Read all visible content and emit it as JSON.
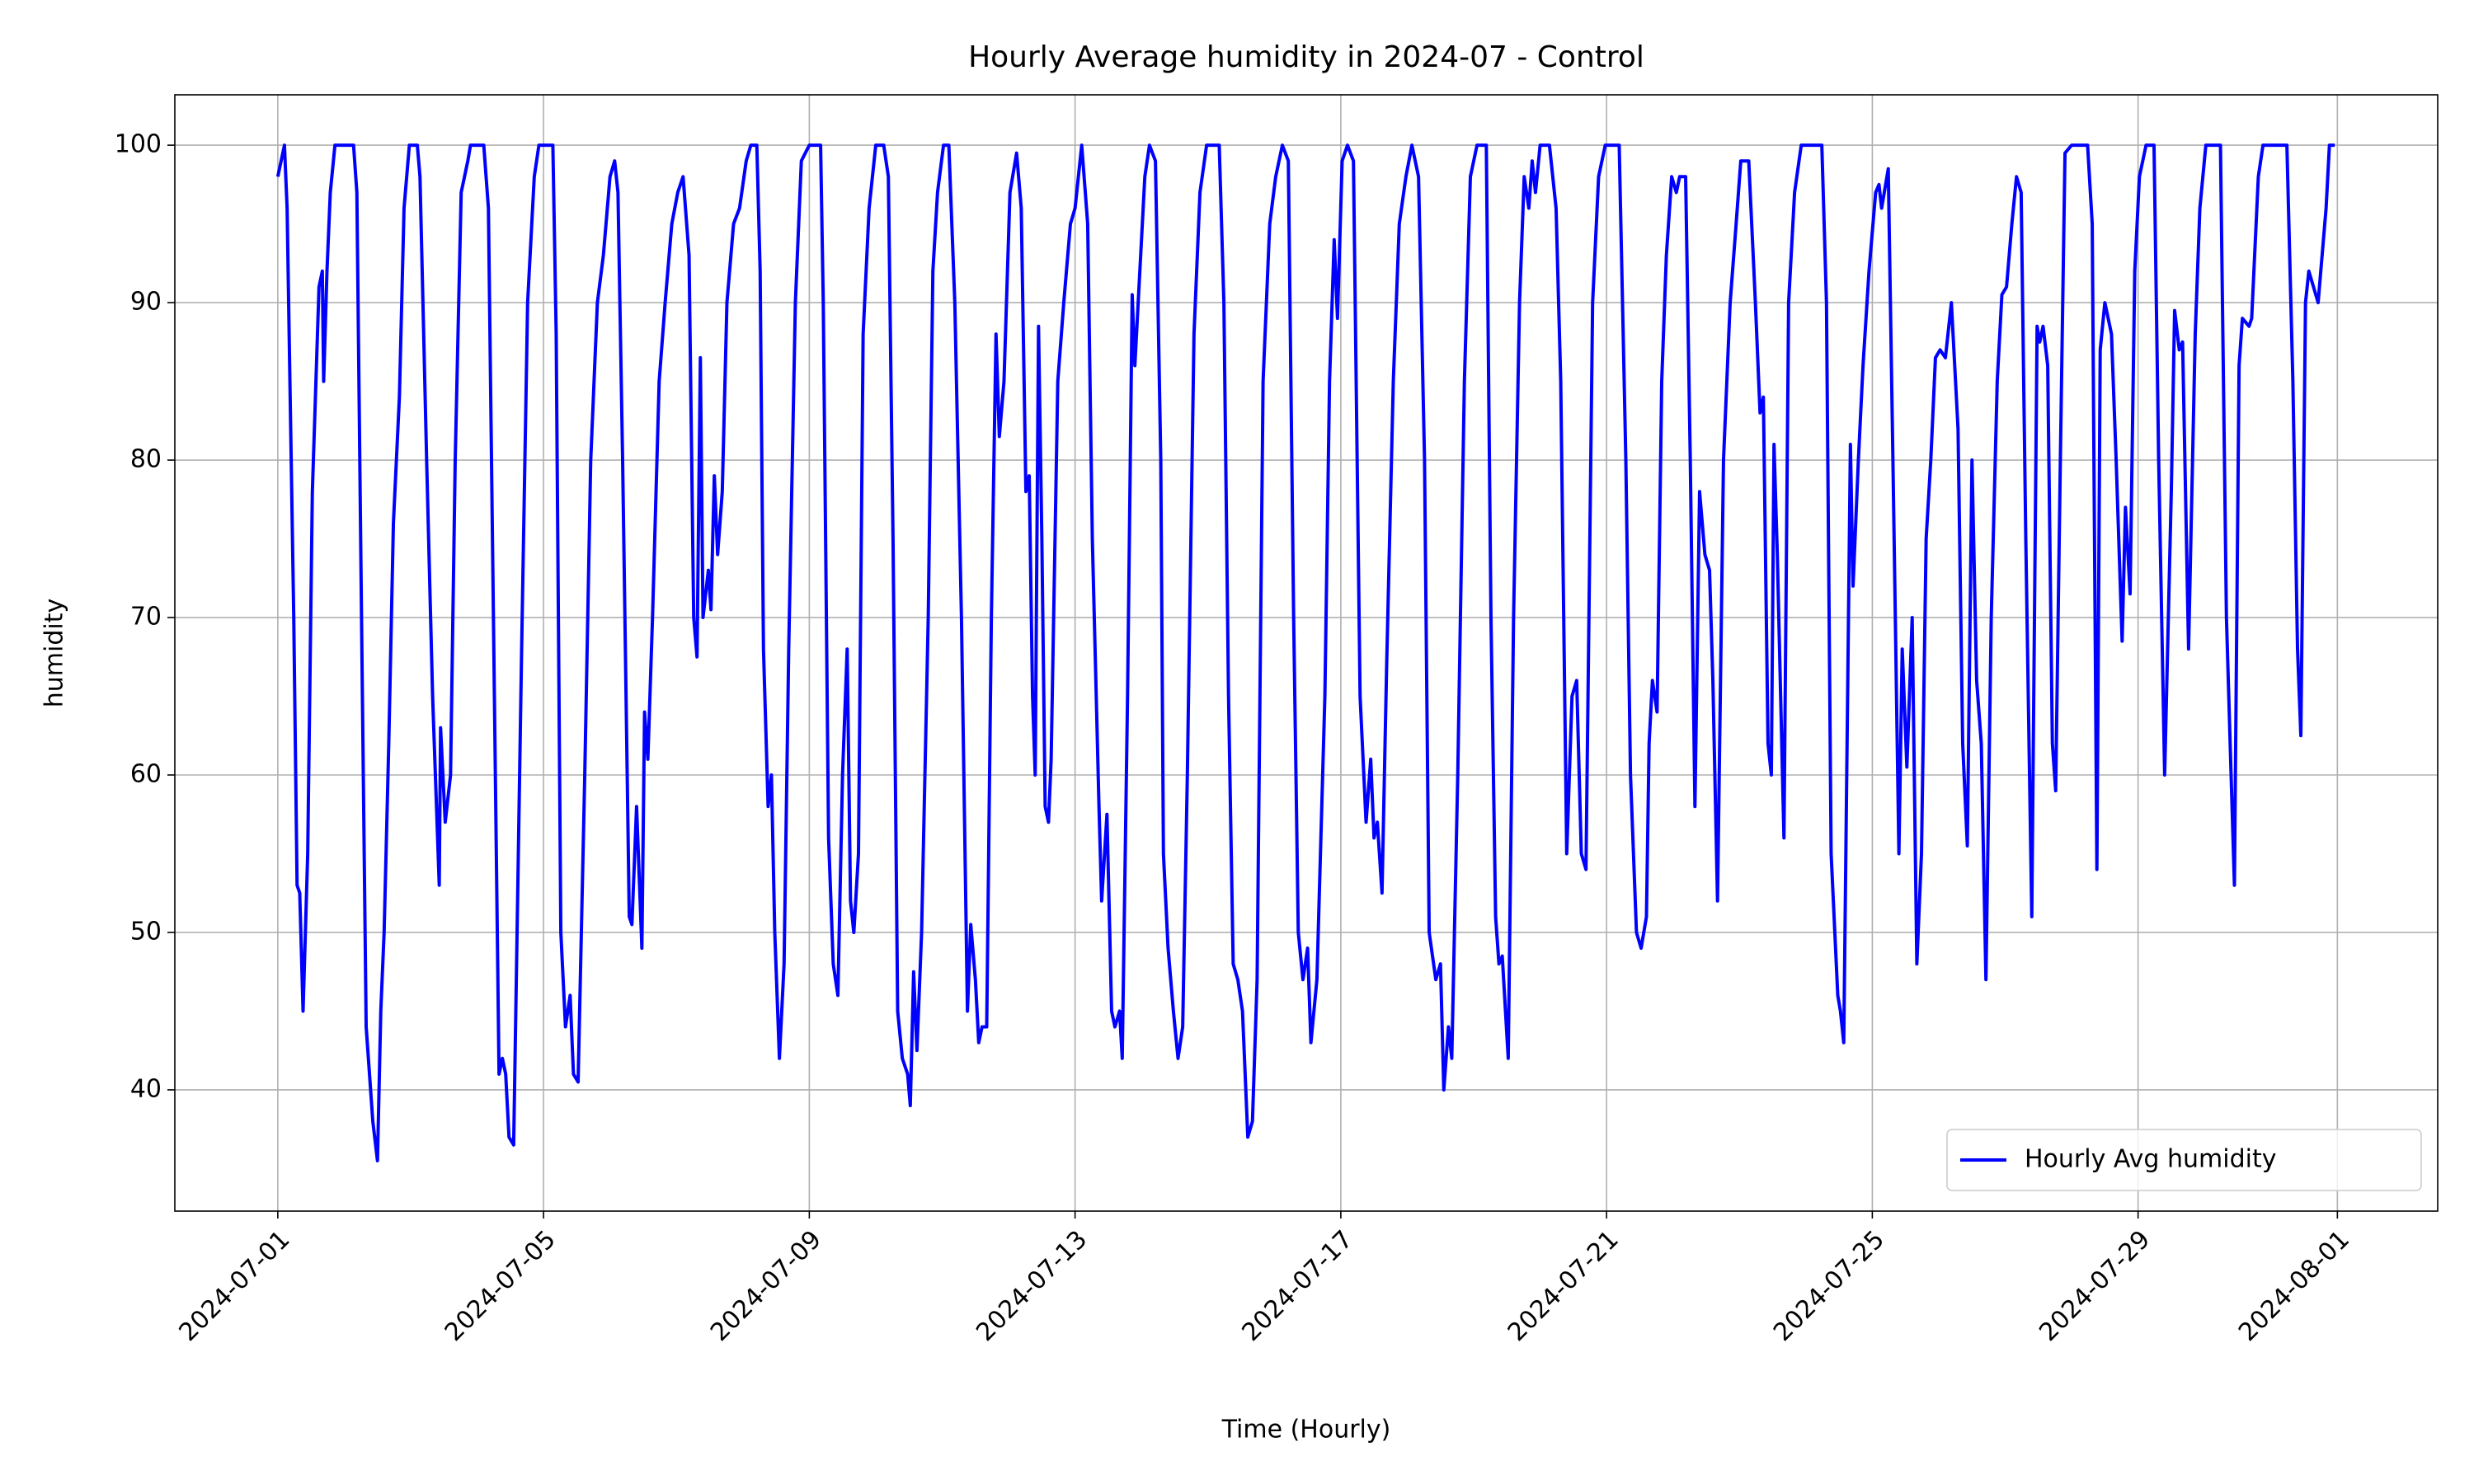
{
  "chart_data": {
    "type": "line",
    "title": "Hourly Average humidity in 2024-07 - Control",
    "x_label": "Time (Hourly)",
    "y_label": "humidity",
    "x": [
      0,
      0.1,
      0.14,
      0.24,
      0.29,
      0.33,
      0.38,
      0.45,
      0.52,
      0.62,
      0.67,
      0.69,
      0.74,
      0.79,
      0.86,
      1.14,
      1.19,
      1.26,
      1.33,
      1.43,
      1.5,
      1.55,
      1.6,
      1.67,
      1.74,
      1.83,
      1.9,
      1.98,
      2.1,
      2.14,
      2.24,
      2.33,
      2.43,
      2.45,
      2.52,
      2.6,
      2.67,
      2.76,
      2.86,
      2.9,
      3.1,
      3.17,
      3.26,
      3.33,
      3.38,
      3.43,
      3.48,
      3.55,
      3.67,
      3.76,
      3.86,
      3.93,
      4.14,
      4.19,
      4.26,
      4.33,
      4.4,
      4.45,
      4.52,
      4.62,
      4.71,
      4.81,
      4.9,
      5.0,
      5.07,
      5.12,
      5.19,
      5.29,
      5.33,
      5.4,
      5.48,
      5.52,
      5.57,
      5.64,
      5.74,
      5.83,
      5.93,
      6.02,
      6.1,
      6.19,
      6.26,
      6.31,
      6.36,
      6.4,
      6.48,
      6.52,
      6.57,
      6.62,
      6.69,
      6.76,
      6.86,
      6.95,
      7.05,
      7.12,
      7.21,
      7.26,
      7.31,
      7.38,
      7.43,
      7.48,
      7.55,
      7.62,
      7.69,
      7.79,
      7.88,
      8.0,
      8.17,
      8.21,
      8.29,
      8.36,
      8.43,
      8.5,
      8.57,
      8.62,
      8.67,
      8.74,
      8.81,
      8.9,
      9.0,
      9.12,
      9.19,
      9.26,
      9.33,
      9.4,
      9.48,
      9.52,
      9.57,
      9.62,
      9.69,
      9.79,
      9.86,
      9.93,
      10.02,
      10.1,
      10.19,
      10.29,
      10.38,
      10.43,
      10.5,
      10.55,
      10.6,
      10.67,
      10.74,
      10.81,
      10.86,
      10.93,
      11.02,
      11.12,
      11.19,
      11.26,
      11.31,
      11.36,
      11.4,
      11.45,
      11.5,
      11.55,
      11.6,
      11.64,
      11.74,
      11.83,
      11.93,
      12.0,
      12.1,
      12.19,
      12.26,
      12.36,
      12.4,
      12.48,
      12.55,
      12.6,
      12.67,
      12.71,
      12.79,
      12.86,
      12.9,
      12.95,
      13.05,
      13.12,
      13.21,
      13.29,
      13.33,
      13.4,
      13.48,
      13.55,
      13.62,
      13.69,
      13.79,
      13.88,
      13.98,
      14.17,
      14.24,
      14.31,
      14.38,
      14.45,
      14.52,
      14.6,
      14.67,
      14.74,
      14.83,
      14.93,
      15.02,
      15.12,
      15.21,
      15.29,
      15.36,
      15.43,
      15.5,
      15.55,
      15.64,
      15.76,
      15.83,
      15.9,
      15.95,
      16.02,
      16.1,
      16.19,
      16.29,
      16.38,
      16.45,
      16.5,
      16.55,
      16.62,
      16.69,
      16.79,
      16.88,
      16.98,
      17.07,
      17.17,
      17.26,
      17.33,
      17.43,
      17.5,
      17.55,
      17.62,
      17.67,
      17.76,
      17.86,
      17.95,
      18.05,
      18.19,
      18.26,
      18.33,
      18.38,
      18.43,
      18.52,
      18.6,
      18.69,
      18.76,
      18.83,
      18.88,
      18.93,
      19.0,
      19.14,
      19.24,
      19.31,
      19.4,
      19.48,
      19.55,
      19.62,
      19.69,
      19.79,
      19.88,
      19.98,
      20.19,
      20.29,
      20.36,
      20.45,
      20.52,
      20.6,
      20.64,
      20.69,
      20.76,
      20.83,
      20.9,
      20.98,
      21.05,
      21.1,
      21.19,
      21.26,
      21.33,
      21.4,
      21.48,
      21.55,
      21.6,
      21.67,
      21.76,
      21.86,
      21.95,
      22.02,
      22.14,
      22.24,
      22.31,
      22.36,
      22.43,
      22.48,
      22.52,
      22.57,
      22.67,
      22.74,
      22.83,
      22.93,
      23.24,
      23.31,
      23.38,
      23.48,
      23.52,
      23.57,
      23.67,
      23.71,
      23.79,
      23.86,
      23.95,
      24.05,
      24.1,
      24.14,
      24.24,
      24.31,
      24.4,
      24.45,
      24.52,
      24.6,
      24.67,
      24.74,
      24.81,
      24.88,
      24.95,
      25.02,
      25.1,
      25.19,
      25.29,
      25.36,
      25.43,
      25.5,
      25.57,
      25.64,
      25.71,
      25.79,
      25.88,
      25.95,
      26.02,
      26.1,
      26.17,
      26.24,
      26.31,
      26.4,
      26.48,
      26.52,
      26.57,
      26.64,
      26.71,
      26.76,
      26.83,
      26.9,
      27.0,
      27.24,
      27.31,
      27.38,
      27.43,
      27.5,
      27.6,
      27.67,
      27.76,
      27.81,
      27.88,
      27.95,
      28.02,
      28.12,
      28.24,
      28.31,
      28.4,
      28.5,
      28.55,
      28.62,
      28.67,
      28.76,
      28.86,
      28.93,
      29.02,
      29.24,
      29.33,
      29.4,
      29.45,
      29.52,
      29.57,
      29.67,
      29.71,
      29.81,
      29.88,
      30.24,
      30.33,
      30.4,
      30.45,
      30.52,
      30.57,
      30.64,
      30.71,
      30.76,
      30.83,
      30.88,
      30.96
    ],
    "series": [
      {
        "name": "Hourly Avg humidity",
        "color": "#0000ff",
        "values": [
          98,
          100,
          96,
          70,
          53,
          52.5,
          45,
          55,
          78,
          91,
          92,
          85,
          92,
          97,
          100,
          100,
          97,
          70,
          44,
          38,
          35.5,
          45,
          50,
          62,
          76,
          84,
          96,
          100,
          100,
          98,
          80,
          65,
          53,
          63,
          57,
          60,
          80,
          97,
          99,
          100,
          100,
          96,
          65,
          41,
          42,
          41,
          37,
          36.5,
          68,
          90,
          98,
          100,
          100,
          88,
          50,
          44,
          46,
          41,
          40.5,
          60,
          80,
          90,
          93,
          98,
          99,
          97,
          80,
          51,
          50.5,
          58,
          49,
          64,
          61,
          70,
          85,
          90,
          95,
          97,
          98,
          93,
          70,
          67.5,
          86.5,
          70,
          73,
          70.5,
          79,
          74,
          78,
          90,
          95,
          96,
          99,
          100,
          100,
          92,
          68,
          58,
          60,
          50,
          42,
          48,
          68,
          90,
          99,
          100,
          100,
          90,
          56,
          48,
          46,
          60,
          68,
          52,
          50,
          55,
          88,
          96,
          100,
          100,
          98,
          75,
          45,
          42,
          41,
          39,
          47.5,
          42.5,
          50,
          70,
          92,
          97,
          100,
          100,
          90,
          70,
          45,
          50.5,
          47,
          43,
          44,
          44,
          70,
          88,
          81.5,
          85,
          97,
          99.5,
          96,
          78,
          79,
          65,
          60,
          88.5,
          75,
          58,
          57,
          61,
          85,
          90,
          95,
          96,
          100,
          95,
          75,
          58,
          52,
          57.5,
          45,
          44,
          45,
          42,
          65,
          90.5,
          86,
          90,
          98,
          100,
          99,
          80,
          55,
          49,
          45,
          42,
          44,
          60,
          88,
          97,
          100,
          100,
          90,
          65,
          48,
          47,
          45,
          37,
          38,
          47,
          85,
          95,
          98,
          100,
          99,
          70,
          50,
          47,
          49,
          43,
          47,
          65,
          85,
          94,
          89,
          99,
          100,
          99,
          65,
          57,
          61,
          56,
          57,
          52.5,
          67,
          85,
          95,
          98,
          100,
          98,
          80,
          50,
          47,
          48,
          40,
          44,
          42,
          60,
          85,
          98,
          100,
          100,
          70,
          51,
          48,
          48.5,
          42,
          70,
          90,
          98,
          96,
          99,
          97,
          100,
          100,
          96,
          85,
          55,
          65,
          66,
          55,
          54,
          90,
          98,
          100,
          100,
          80,
          60,
          50,
          49,
          51,
          62,
          66,
          64,
          85,
          93,
          98,
          97,
          98,
          98,
          80,
          58,
          78,
          74,
          73,
          66,
          52,
          80,
          90,
          95,
          99,
          99,
          90,
          83,
          84,
          62,
          60,
          81,
          74,
          56,
          90,
          97,
          100,
          100,
          90,
          55,
          46,
          45,
          43,
          81,
          72,
          80,
          86,
          92,
          97,
          97.5,
          96,
          98.5,
          80,
          55,
          68,
          60.5,
          70,
          48,
          55,
          75,
          80,
          86.5,
          87,
          86.5,
          90,
          82,
          62,
          55.5,
          80,
          66,
          62,
          47,
          70,
          85,
          90.5,
          91,
          95,
          98,
          97,
          75,
          51,
          88.5,
          87.5,
          88.5,
          86,
          62,
          59,
          80,
          99.5,
          100,
          100,
          95,
          54,
          87,
          90,
          88,
          80,
          68.5,
          77,
          71.5,
          92,
          98,
          100,
          100,
          80,
          60,
          78,
          89.5,
          87,
          87.5,
          68,
          88,
          96,
          100,
          100,
          70,
          60,
          53,
          86,
          89,
          88.5,
          89,
          98,
          100,
          100,
          85,
          68,
          62.5,
          90,
          92,
          91,
          90,
          92.5,
          96,
          100,
          100
        ]
      }
    ],
    "xlim": [
      -1.55,
      32.51
    ],
    "xticks": [
      {
        "value": 0,
        "label": "2024-07-01"
      },
      {
        "value": 4,
        "label": "2024-07-05"
      },
      {
        "value": 8,
        "label": "2024-07-09"
      },
      {
        "value": 12,
        "label": "2024-07-13"
      },
      {
        "value": 16,
        "label": "2024-07-17"
      },
      {
        "value": 20,
        "label": "2024-07-21"
      },
      {
        "value": 24,
        "label": "2024-07-25"
      },
      {
        "value": 28,
        "label": "2024-07-29"
      },
      {
        "value": 31,
        "label": "2024-08-01"
      }
    ],
    "ylim": [
      32.3,
      103.2
    ],
    "yticks": [
      40,
      50,
      60,
      70,
      80,
      90,
      100
    ],
    "grid": true,
    "legend": "lower right"
  }
}
